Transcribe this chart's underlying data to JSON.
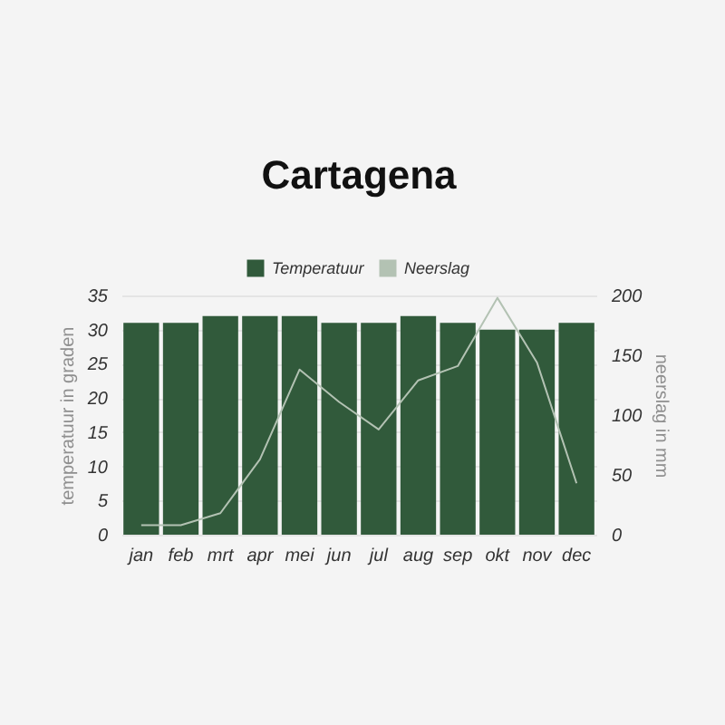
{
  "chart_data": {
    "type": "bar",
    "title": "Cartagena",
    "ylabel": "temperatuur in graden",
    "y2label": "neerslag in mm",
    "categories": [
      "jan",
      "feb",
      "mrt",
      "apr",
      "mei",
      "jun",
      "jul",
      "aug",
      "sep",
      "okt",
      "nov",
      "dec"
    ],
    "series": [
      {
        "name": "Temperatuur",
        "color": "#315a3b",
        "values": [
          31,
          31,
          32,
          32,
          32,
          31,
          31,
          32,
          31,
          30,
          30,
          31
        ]
      },
      {
        "name": "Neerslag",
        "type": "line",
        "axis": "y2",
        "color": "#b3c2b3",
        "values": [
          8,
          8,
          18,
          63,
          138,
          111,
          88,
          129,
          141,
          198,
          144,
          43
        ]
      }
    ],
    "ylim": [
      0,
      35
    ],
    "yticks": [
      0,
      5,
      10,
      15,
      20,
      25,
      30,
      35
    ],
    "y2lim": [
      0,
      200
    ],
    "y2ticks": [
      0,
      50,
      100,
      150,
      200
    ],
    "legend": "top",
    "grid": "y"
  }
}
